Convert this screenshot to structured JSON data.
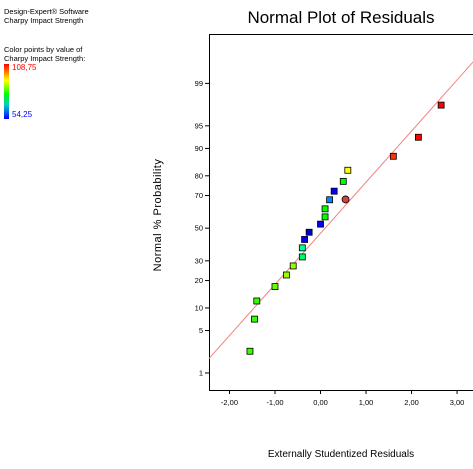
{
  "software": {
    "name": "Design-Expert® Software",
    "response": "Charpy Impact Strength"
  },
  "legend": {
    "title_line1": "Color points by value of",
    "title_line2": "Charpy Impact Strength:",
    "max_label": "108,75",
    "min_label": "54,25",
    "max_color": "#ff0000",
    "min_color": "#0000ff"
  },
  "chart_data": {
    "type": "scatter",
    "title": "Normal Plot of Residuals",
    "xlabel": "Externally Studentized Residuals",
    "ylabel": "Normal % Probability",
    "x_ticks": [
      -2,
      -1,
      0,
      1,
      2,
      3
    ],
    "x_tick_labels": [
      "-2,00",
      "-1,00",
      "0,00",
      "1,00",
      "2,00",
      "3,00"
    ],
    "y_scale": "normal-probability",
    "y_ticks": [
      1,
      5,
      10,
      20,
      30,
      50,
      70,
      80,
      90,
      95,
      99
    ],
    "y_tick_labels": [
      "1",
      "5",
      "10",
      "20",
      "30",
      "50",
      "70",
      "80",
      "90",
      "95",
      "99"
    ],
    "xlim": [
      -2.45,
      3.35
    ],
    "grid": false,
    "reference_line": {
      "color": "#f28080",
      "points": [
        {
          "x": -2.45,
          "y": 1.81
        },
        {
          "x": 3.35,
          "y": 99.62
        }
      ]
    },
    "points": [
      {
        "x": -1.55,
        "y": 2.4,
        "color": "#33ff00",
        "shape": "square"
      },
      {
        "x": -1.45,
        "y": 7.2,
        "color": "#33ff00",
        "shape": "square"
      },
      {
        "x": -1.4,
        "y": 12.1,
        "color": "#33ff00",
        "shape": "square"
      },
      {
        "x": -1.0,
        "y": 17.4,
        "color": "#66ff00",
        "shape": "square"
      },
      {
        "x": -0.75,
        "y": 22.6,
        "color": "#99ff00",
        "shape": "square"
      },
      {
        "x": -0.6,
        "y": 27.2,
        "color": "#99ff00",
        "shape": "square"
      },
      {
        "x": -0.4,
        "y": 32.2,
        "color": "#00ff66",
        "shape": "square"
      },
      {
        "x": -0.4,
        "y": 37.6,
        "color": "#00ff99",
        "shape": "square"
      },
      {
        "x": -0.35,
        "y": 42.8,
        "color": "#0000ff",
        "shape": "square"
      },
      {
        "x": -0.25,
        "y": 47.4,
        "color": "#0000cc",
        "shape": "square"
      },
      {
        "x": 0.0,
        "y": 52.6,
        "color": "#0000ff",
        "shape": "square"
      },
      {
        "x": 0.1,
        "y": 57.2,
        "color": "#00ff00",
        "shape": "square"
      },
      {
        "x": 0.1,
        "y": 62.2,
        "color": "#00ff00",
        "shape": "square"
      },
      {
        "x": 0.55,
        "y": 67.8,
        "color": "#cc4444",
        "shape": "circle"
      },
      {
        "x": 0.2,
        "y": 67.6,
        "color": "#0088ff",
        "shape": "square"
      },
      {
        "x": 0.3,
        "y": 72.4,
        "color": "#0000ff",
        "shape": "square"
      },
      {
        "x": 0.5,
        "y": 77.4,
        "color": "#00ff00",
        "shape": "square"
      },
      {
        "x": 0.6,
        "y": 82.4,
        "color": "#ffff00",
        "shape": "square"
      },
      {
        "x": 1.6,
        "y": 87.6,
        "color": "#ff3300",
        "shape": "square"
      },
      {
        "x": 2.15,
        "y": 92.8,
        "color": "#ff0000",
        "shape": "square"
      },
      {
        "x": 2.65,
        "y": 97.6,
        "color": "#ff0000",
        "shape": "square"
      }
    ]
  }
}
